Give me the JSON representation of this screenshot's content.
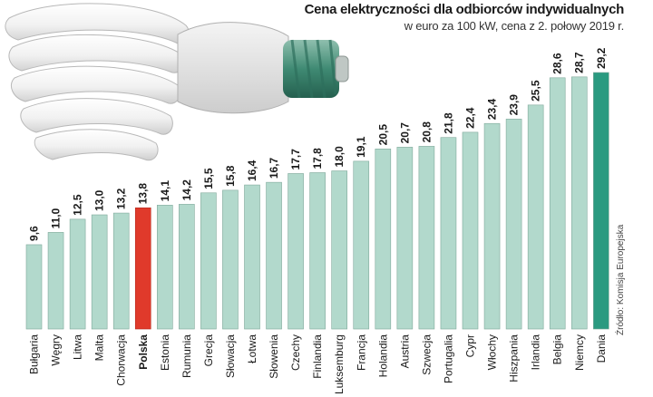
{
  "header": {
    "title": "Cena elektryczności dla odbiorców indywidualnych",
    "subtitle": "w euro za 100 kW, cena z 2. połowy 2019 r."
  },
  "source": "Źródło: Komisja Europejska",
  "colors": {
    "bar": "#b2d9cc",
    "bar_stroke": "#7fa89a",
    "highlight": "#e03a2b",
    "max": "#2a9a80"
  },
  "illustration": "energy-saving-bulb",
  "chart_data": {
    "type": "bar",
    "title": "Cena elektryczności dla odbiorców indywidualnych",
    "subtitle": "w euro za 100 kW, cena z 2. połowy 2019 r.",
    "categories": [
      "Bułgaria",
      "Węgry",
      "Litwa",
      "Malta",
      "Chorwacja",
      "Polska",
      "Estonia",
      "Rumunia",
      "Grecja",
      "Słowacja",
      "Łotwa",
      "Słowenia",
      "Czechy",
      "Finlandia",
      "Luksemburg",
      "Francja",
      "Holandia",
      "Austria",
      "Szwecja",
      "Portugalia",
      "Cypr",
      "Włochy",
      "Hiszpania",
      "Irlandia",
      "Belgia",
      "Niemcy",
      "Dania"
    ],
    "values": [
      9.6,
      11.0,
      12.5,
      13.0,
      13.2,
      13.8,
      14.1,
      14.2,
      15.5,
      15.8,
      16.4,
      16.7,
      17.7,
      17.8,
      18.0,
      19.1,
      20.5,
      20.7,
      20.8,
      21.8,
      22.4,
      23.4,
      23.9,
      25.5,
      28.6,
      28.7,
      29.2
    ],
    "value_labels": [
      "9,6",
      "11,0",
      "12,5",
      "13,0",
      "13,2",
      "13,8",
      "14,1",
      "14,2",
      "15,5",
      "15,8",
      "16,4",
      "16,7",
      "17,7",
      "17,8",
      "18,0",
      "19,1",
      "20,5",
      "20,7",
      "20,8",
      "21,8",
      "22,4",
      "23,4",
      "23,9",
      "25,5",
      "28,6",
      "28,7",
      "29,2"
    ],
    "highlight": "Polska",
    "max_category": "Dania",
    "grid": false,
    "ylim": [
      0,
      29.2
    ]
  }
}
